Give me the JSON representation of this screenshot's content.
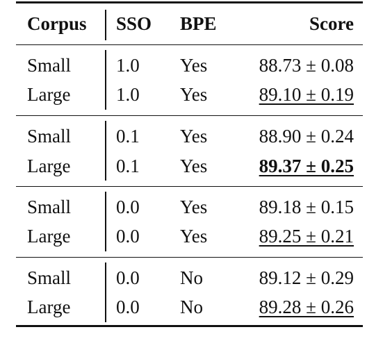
{
  "header": {
    "corpus": "Corpus",
    "sso": "SSO",
    "bpe": "BPE",
    "score": "Score"
  },
  "groups": [
    {
      "rows": [
        {
          "corpus": "Small",
          "sso": "1.0",
          "bpe": "Yes",
          "score": "88.73 ± 0.08",
          "underline": false,
          "bold": false
        },
        {
          "corpus": "Large",
          "sso": "1.0",
          "bpe": "Yes",
          "score": "89.10 ± 0.19",
          "underline": true,
          "bold": false
        }
      ]
    },
    {
      "rows": [
        {
          "corpus": "Small",
          "sso": "0.1",
          "bpe": "Yes",
          "score": "88.90 ± 0.24",
          "underline": false,
          "bold": false
        },
        {
          "corpus": "Large",
          "sso": "0.1",
          "bpe": "Yes",
          "score": "89.37 ± 0.25",
          "underline": true,
          "bold": true
        }
      ]
    },
    {
      "rows": [
        {
          "corpus": "Small",
          "sso": "0.0",
          "bpe": "Yes",
          "score": "89.18 ± 0.15",
          "underline": false,
          "bold": false
        },
        {
          "corpus": "Large",
          "sso": "0.0",
          "bpe": "Yes",
          "score": "89.25 ± 0.21",
          "underline": true,
          "bold": false
        }
      ]
    },
    {
      "rows": [
        {
          "corpus": "Small",
          "sso": "0.0",
          "bpe": "No",
          "score": "89.12 ± 0.29",
          "underline": false,
          "bold": false
        },
        {
          "corpus": "Large",
          "sso": "0.0",
          "bpe": "No",
          "score": "89.28 ± 0.26",
          "underline": true,
          "bold": false
        }
      ]
    }
  ]
}
